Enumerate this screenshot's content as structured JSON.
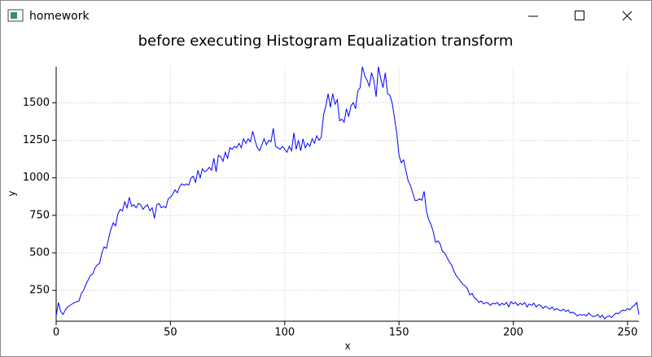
{
  "window": {
    "title": "homework"
  },
  "chart_data": {
    "type": "line",
    "title": "before executing Histogram Equalization transform",
    "x_label": "x",
    "y_label": "y",
    "x": [
      0,
      1,
      2,
      3,
      4,
      5,
      6,
      7,
      8,
      9,
      10,
      11,
      12,
      13,
      14,
      15,
      16,
      17,
      18,
      19,
      20,
      21,
      22,
      23,
      24,
      25,
      26,
      27,
      28,
      29,
      30,
      31,
      32,
      33,
      34,
      35,
      36,
      37,
      38,
      39,
      40,
      41,
      42,
      43,
      44,
      45,
      46,
      47,
      48,
      49,
      50,
      51,
      52,
      53,
      54,
      55,
      56,
      57,
      58,
      59,
      60,
      61,
      62,
      63,
      64,
      65,
      66,
      67,
      68,
      69,
      70,
      71,
      72,
      73,
      74,
      75,
      76,
      77,
      78,
      79,
      80,
      81,
      82,
      83,
      84,
      85,
      86,
      87,
      88,
      89,
      90,
      91,
      92,
      93,
      94,
      95,
      96,
      97,
      98,
      99,
      100,
      101,
      102,
      103,
      104,
      105,
      106,
      107,
      108,
      109,
      110,
      111,
      112,
      113,
      114,
      115,
      116,
      117,
      118,
      119,
      120,
      121,
      122,
      123,
      124,
      125,
      126,
      127,
      128,
      129,
      130,
      131,
      132,
      133,
      134,
      135,
      136,
      137,
      138,
      139,
      140,
      141,
      142,
      143,
      144,
      145,
      146,
      147,
      148,
      149,
      150,
      151,
      152,
      153,
      154,
      155,
      156,
      157,
      158,
      159,
      160,
      161,
      162,
      163,
      164,
      165,
      166,
      167,
      168,
      169,
      170,
      171,
      172,
      173,
      174,
      175,
      176,
      177,
      178,
      179,
      180,
      181,
      182,
      183,
      184,
      185,
      186,
      187,
      188,
      189,
      190,
      191,
      192,
      193,
      194,
      195,
      196,
      197,
      198,
      199,
      200,
      201,
      202,
      203,
      204,
      205,
      206,
      207,
      208,
      209,
      210,
      211,
      212,
      213,
      214,
      215,
      216,
      217,
      218,
      219,
      220,
      221,
      222,
      223,
      224,
      225,
      226,
      227,
      228,
      229,
      230,
      231,
      232,
      233,
      234,
      235,
      236,
      237,
      238,
      239,
      240,
      241,
      242,
      243,
      244,
      245,
      246,
      247,
      248,
      249,
      250,
      251,
      252,
      253,
      254,
      255
    ],
    "series": [
      {
        "color": "#0000ff",
        "values": [
          80,
          170,
          110,
          90,
          120,
          140,
          150,
          160,
          170,
          175,
          180,
          230,
          250,
          290,
          320,
          350,
          360,
          400,
          420,
          430,
          500,
          540,
          530,
          600,
          660,
          700,
          680,
          760,
          790,
          780,
          840,
          800,
          870,
          810,
          820,
          800,
          830,
          820,
          790,
          810,
          820,
          780,
          800,
          730,
          820,
          830,
          800,
          810,
          800,
          860,
          870,
          890,
          920,
          900,
          940,
          960,
          950,
          960,
          950,
          1000,
          1010,
          970,
          1050,
          1000,
          1060,
          1040,
          1050,
          1070,
          1050,
          1130,
          1040,
          1150,
          1140,
          1110,
          1170,
          1130,
          1200,
          1190,
          1210,
          1200,
          1230,
          1200,
          1260,
          1230,
          1260,
          1240,
          1310,
          1250,
          1200,
          1180,
          1220,
          1260,
          1220,
          1250,
          1240,
          1330,
          1210,
          1200,
          1190,
          1210,
          1190,
          1170,
          1210,
          1180,
          1300,
          1190,
          1250,
          1180,
          1260,
          1200,
          1230,
          1210,
          1260,
          1230,
          1280,
          1250,
          1270,
          1420,
          1480,
          1560,
          1470,
          1560,
          1490,
          1520,
          1380,
          1390,
          1370,
          1460,
          1410,
          1480,
          1500,
          1460,
          1580,
          1600,
          1740,
          1680,
          1650,
          1610,
          1700,
          1650,
          1540,
          1740,
          1660,
          1600,
          1700,
          1560,
          1550,
          1500,
          1400,
          1300,
          1150,
          1100,
          1120,
          1050,
          980,
          950,
          900,
          850,
          850,
          860,
          850,
          910,
          780,
          720,
          690,
          640,
          570,
          580,
          560,
          510,
          500,
          470,
          440,
          420,
          380,
          350,
          330,
          310,
          290,
          280,
          260,
          220,
          230,
          200,
          190,
          170,
          180,
          160,
          170,
          165,
          150,
          165,
          160,
          170,
          150,
          165,
          155,
          170,
          140,
          175,
          160,
          170,
          150,
          165,
          155,
          170,
          140,
          160,
          150,
          165,
          140,
          155,
          150,
          130,
          145,
          135,
          125,
          140,
          120,
          130,
          120,
          115,
          125,
          110,
          120,
          100,
          105,
          95,
          80,
          90,
          85,
          90,
          80,
          100,
          85,
          75,
          80,
          90,
          70,
          85,
          60,
          75,
          80,
          70,
          85,
          100,
          95,
          110,
          120,
          115,
          130,
          120,
          140,
          150,
          170,
          90
        ]
      }
    ],
    "xlim": [
      0,
      255
    ],
    "ylim": [
      45,
      1740
    ],
    "xticks": [
      0,
      50,
      100,
      150,
      200,
      250
    ],
    "yticks": [
      250,
      500,
      750,
      1000,
      1250,
      1500
    ],
    "grid": true
  }
}
